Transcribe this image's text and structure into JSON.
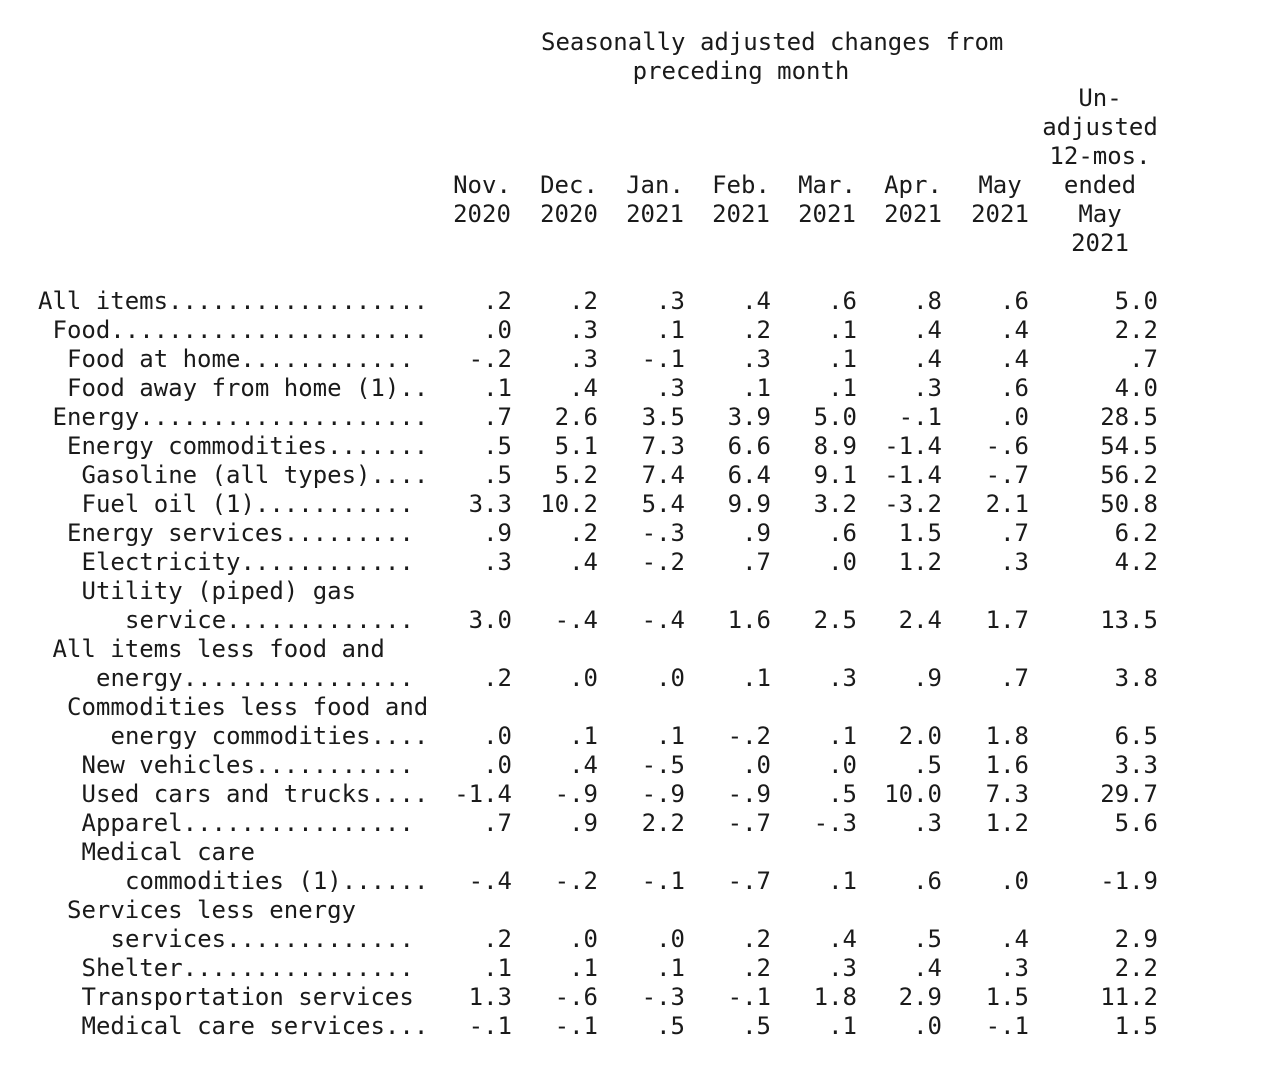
{
  "super_header": [
    "Seasonally adjusted changes from",
    "preceding month"
  ],
  "columns": [
    [
      "Nov.",
      "2020"
    ],
    [
      "Dec.",
      "2020"
    ],
    [
      "Jan.",
      "2021"
    ],
    [
      "Feb.",
      "2021"
    ],
    [
      "Mar.",
      "2021"
    ],
    [
      "Apr.",
      "2021"
    ],
    [
      "May",
      "2021"
    ],
    [
      "Un-",
      "adjusted",
      "12-mos.",
      "ended",
      "May",
      "2021"
    ]
  ],
  "rows": [
    {
      "label": "All items..................",
      "indent": 0,
      "values": [
        ".2",
        ".2",
        ".3",
        ".4",
        ".6",
        ".8",
        ".6",
        "5.0"
      ]
    },
    {
      "label": "Food......................",
      "indent": 1,
      "values": [
        ".0",
        ".3",
        ".1",
        ".2",
        ".1",
        ".4",
        ".4",
        "2.2"
      ]
    },
    {
      "label": "Food at home............",
      "indent": 2,
      "values": [
        "-.2",
        ".3",
        "-.1",
        ".3",
        ".1",
        ".4",
        ".4",
        ".7"
      ]
    },
    {
      "label": "Food away from home (1)..",
      "indent": 2,
      "values": [
        ".1",
        ".4",
        ".3",
        ".1",
        ".1",
        ".3",
        ".6",
        "4.0"
      ]
    },
    {
      "label": "Energy....................",
      "indent": 1,
      "values": [
        ".7",
        "2.6",
        "3.5",
        "3.9",
        "5.0",
        "-.1",
        ".0",
        "28.5"
      ]
    },
    {
      "label": "Energy commodities.......",
      "indent": 2,
      "values": [
        ".5",
        "5.1",
        "7.3",
        "6.6",
        "8.9",
        "-1.4",
        "-.6",
        "54.5"
      ]
    },
    {
      "label": "Gasoline (all types)....",
      "indent": 3,
      "values": [
        ".5",
        "5.2",
        "7.4",
        "6.4",
        "9.1",
        "-1.4",
        "-.7",
        "56.2"
      ]
    },
    {
      "label": "Fuel oil (1)...........",
      "indent": 3,
      "values": [
        "3.3",
        "10.2",
        "5.4",
        "9.9",
        "3.2",
        "-3.2",
        "2.1",
        "50.8"
      ]
    },
    {
      "label": "Energy services.........",
      "indent": 2,
      "values": [
        ".9",
        ".2",
        "-.3",
        ".9",
        ".6",
        "1.5",
        ".7",
        "6.2"
      ]
    },
    {
      "label": "Electricity............",
      "indent": 3,
      "values": [
        ".3",
        ".4",
        "-.2",
        ".7",
        ".0",
        "1.2",
        ".3",
        "4.2"
      ]
    },
    {
      "label": [
        "Utility (piped) gas",
        "service............."
      ],
      "indent": 3,
      "indent2": 6,
      "values": [
        "3.0",
        "-.4",
        "-.4",
        "1.6",
        "2.5",
        "2.4",
        "1.7",
        "13.5"
      ]
    },
    {
      "label": [
        "All items less food and",
        "energy................"
      ],
      "indent": 1,
      "indent2": 4,
      "values": [
        ".2",
        ".0",
        ".0",
        ".1",
        ".3",
        ".9",
        ".7",
        "3.8"
      ]
    },
    {
      "label": [
        "Commodities less food and",
        "energy commodities...."
      ],
      "indent": 2,
      "indent2": 5,
      "values": [
        ".0",
        ".1",
        ".1",
        "-.2",
        ".1",
        "2.0",
        "1.8",
        "6.5"
      ]
    },
    {
      "label": "New vehicles...........",
      "indent": 3,
      "values": [
        ".0",
        ".4",
        "-.5",
        ".0",
        ".0",
        ".5",
        "1.6",
        "3.3"
      ]
    },
    {
      "label": "Used cars and trucks....",
      "indent": 3,
      "values": [
        "-1.4",
        "-.9",
        "-.9",
        "-.9",
        ".5",
        "10.0",
        "7.3",
        "29.7"
      ]
    },
    {
      "label": "Apparel................",
      "indent": 3,
      "values": [
        ".7",
        ".9",
        "2.2",
        "-.7",
        "-.3",
        ".3",
        "1.2",
        "5.6"
      ]
    },
    {
      "label": [
        "Medical care",
        "commodities (1)......"
      ],
      "indent": 3,
      "indent2": 6,
      "values": [
        "-.4",
        "-.2",
        "-.1",
        "-.7",
        ".1",
        ".6",
        ".0",
        "-1.9"
      ]
    },
    {
      "label": [
        "Services less energy",
        "services............."
      ],
      "indent": 2,
      "indent2": 5,
      "values": [
        ".2",
        ".0",
        ".0",
        ".2",
        ".4",
        ".5",
        ".4",
        "2.9"
      ]
    },
    {
      "label": "Shelter................",
      "indent": 3,
      "values": [
        ".1",
        ".1",
        ".1",
        ".2",
        ".3",
        ".4",
        ".3",
        "2.2"
      ]
    },
    {
      "label": "Transportation services",
      "indent": 3,
      "values": [
        "1.3",
        "-.6",
        "-.3",
        "-.1",
        "1.8",
        "2.9",
        "1.5",
        "11.2"
      ]
    },
    {
      "label": "Medical care services...",
      "indent": 3,
      "values": [
        "-.1",
        "-.1",
        ".5",
        ".5",
        ".1",
        ".0",
        "-.1",
        "1.5"
      ]
    }
  ]
}
